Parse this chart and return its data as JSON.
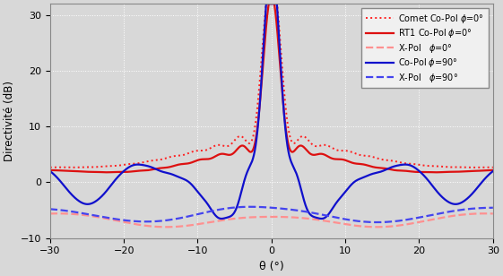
{
  "title": "",
  "xlabel": "θ (°)",
  "ylabel": "Directivité (dB)",
  "xlim": [
    -30,
    30
  ],
  "ylim": [
    -10,
    32
  ],
  "yticks": [
    -10,
    0,
    10,
    20,
    30
  ],
  "xticks": [
    -30,
    -20,
    -10,
    0,
    10,
    20,
    30
  ],
  "colors": {
    "comet": "#FF2020",
    "rt1": "#DD1010",
    "xpol0": "#FF9090",
    "copol90": "#1010CC",
    "xpol90": "#4444EE"
  },
  "legend_labels": [
    "Comet Co-Pol $\\phi$=0°",
    "RT1 Co-Pol $\\phi$=0°",
    "X-Pol   $\\phi$=0°",
    "Co-Pol $\\phi$=90°",
    "X-Pol   $\\phi$=90°"
  ],
  "bg_color": "#d8d8d8",
  "grid_color": "#ffffff",
  "grid_style": ":"
}
